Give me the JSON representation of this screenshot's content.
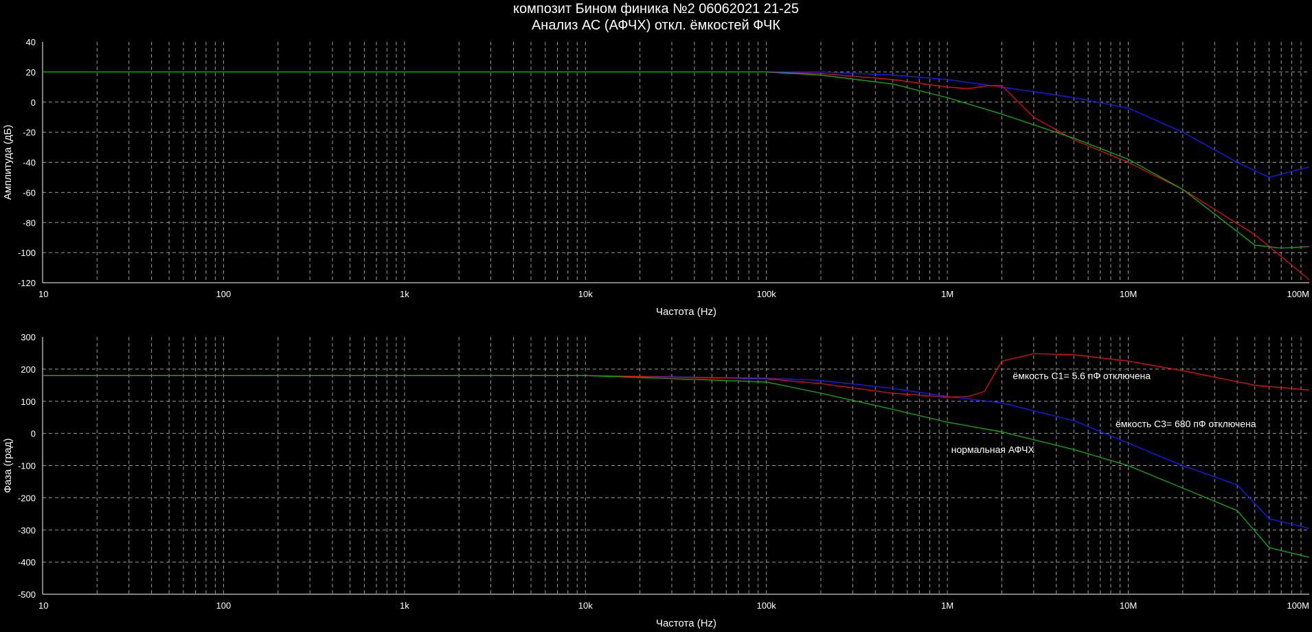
{
  "title_line1": "композит Бином финика №2  06062021 21-25",
  "title_line2": "Анализ АС (АФЧХ) откл. ёмкостей ФЧК",
  "colors": {
    "background": "#000000",
    "grid": "#9a9a9a",
    "text": "#ffffff",
    "blue": "#1a1aff",
    "red": "#e01010",
    "green": "#10b010"
  },
  "chart_data": [
    {
      "type": "line",
      "xscale": "log",
      "xlim": [
        10,
        100000000
      ],
      "ylim": [
        -120,
        40
      ],
      "yticks": [
        40,
        20,
        0,
        -20,
        -40,
        -60,
        -80,
        -100,
        -120
      ],
      "xticks": [
        {
          "v": 10,
          "label": "10"
        },
        {
          "v": 100,
          "label": "100"
        },
        {
          "v": 1000,
          "label": "1k"
        },
        {
          "v": 10000,
          "label": "10k"
        },
        {
          "v": 100000,
          "label": "100k"
        },
        {
          "v": 1000000,
          "label": "1M"
        },
        {
          "v": 10000000,
          "label": "10M"
        },
        {
          "v": 100000000,
          "label": "100M"
        }
      ],
      "xlabel": "Частота (Hz)",
      "ylabel": "Амплитуда (дБ)",
      "grid": true,
      "series": [
        {
          "color": "blue",
          "x": [
            10,
            100000,
            200000,
            500000,
            1000000,
            2000000,
            5000000,
            10000000,
            20000000,
            40000000,
            60000000,
            100000000
          ],
          "y": [
            20,
            20,
            20,
            18,
            15,
            10,
            3,
            -4,
            -20,
            -40,
            -50,
            -43
          ]
        },
        {
          "color": "red",
          "x": [
            10,
            100000,
            200000,
            500000,
            1000000,
            1300000,
            1700000,
            2000000,
            3000000,
            5000000,
            10000000,
            20000000,
            50000000,
            100000000
          ],
          "y": [
            20,
            20,
            19,
            15,
            10,
            9,
            11,
            11,
            -10,
            -25,
            -40,
            -58,
            -88,
            -118
          ]
        },
        {
          "color": "green",
          "x": [
            10,
            100000,
            200000,
            500000,
            1000000,
            2000000,
            5000000,
            10000000,
            20000000,
            50000000,
            70000000,
            100000000
          ],
          "y": [
            20,
            20,
            18,
            12,
            3,
            -8,
            -24,
            -38,
            -58,
            -95,
            -97,
            -96
          ]
        }
      ]
    },
    {
      "type": "line",
      "xscale": "log",
      "xlim": [
        10,
        100000000
      ],
      "ylim": [
        -500,
        300
      ],
      "yticks": [
        300,
        200,
        100,
        0,
        -100,
        -200,
        -300,
        -400,
        -500
      ],
      "xticks": [
        {
          "v": 10,
          "label": "10"
        },
        {
          "v": 100,
          "label": "100"
        },
        {
          "v": 1000,
          "label": "1k"
        },
        {
          "v": 10000,
          "label": "10k"
        },
        {
          "v": 100000,
          "label": "100k"
        },
        {
          "v": 1000000,
          "label": "1M"
        },
        {
          "v": 10000000,
          "label": "10M"
        },
        {
          "v": 100000000,
          "label": "100M"
        }
      ],
      "xlabel": "Частота (Hz)",
      "ylabel": "Фаза (град)",
      "grid": true,
      "annotations": [
        {
          "text": "ёмкость С1= 5.6 пФ отключена",
          "x": 2300000,
          "y": 180
        },
        {
          "text": "ёмкость С3= 680 пФ отключена",
          "x": 8500000,
          "y": 30
        },
        {
          "text": "нормальная АФЧХ",
          "x": 1050000,
          "y": -50
        }
      ],
      "series": [
        {
          "color": "blue",
          "x": [
            10,
            10000,
            100000,
            200000,
            500000,
            1000000,
            2000000,
            5000000,
            10000000,
            20000000,
            40000000,
            60000000,
            100000000
          ],
          "y": [
            180,
            180,
            172,
            165,
            140,
            115,
            95,
            40,
            -30,
            -100,
            -160,
            -265,
            -295
          ]
        },
        {
          "color": "red",
          "x": [
            10,
            10000,
            100000,
            200000,
            500000,
            1000000,
            1300000,
            1600000,
            2000000,
            3000000,
            5000000,
            10000000,
            20000000,
            50000000,
            100000000
          ],
          "y": [
            180,
            180,
            170,
            155,
            125,
            113,
            115,
            130,
            225,
            248,
            245,
            225,
            195,
            150,
            135
          ]
        },
        {
          "color": "green",
          "x": [
            10,
            10000,
            100000,
            200000,
            500000,
            1000000,
            2000000,
            5000000,
            10000000,
            20000000,
            40000000,
            60000000,
            100000000
          ],
          "y": [
            180,
            180,
            160,
            125,
            75,
            35,
            5,
            -50,
            -100,
            -170,
            -240,
            -355,
            -385
          ]
        }
      ]
    }
  ]
}
